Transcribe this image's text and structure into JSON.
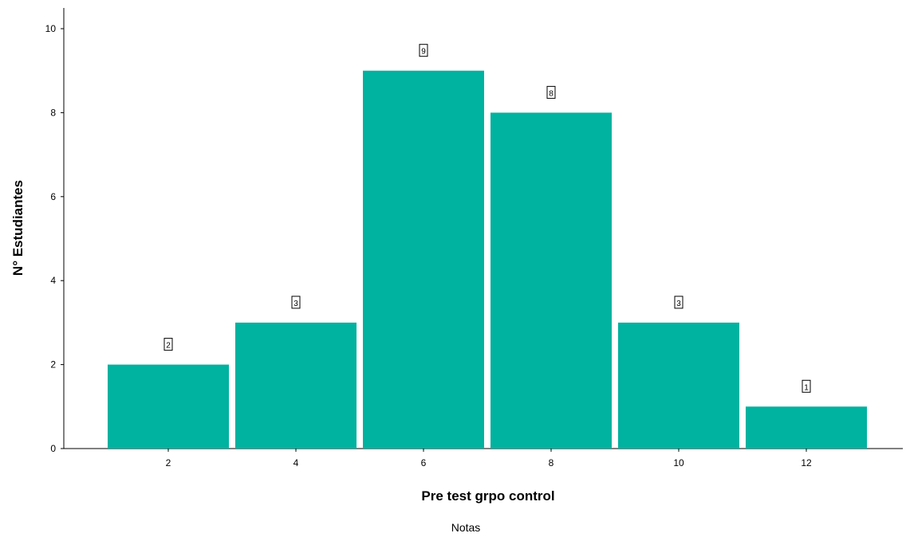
{
  "chart_data": {
    "type": "bar",
    "categories": [
      "2",
      "4",
      "6",
      "8",
      "10",
      "12"
    ],
    "values": [
      2,
      3,
      9,
      8,
      3,
      1
    ],
    "data_labels": [
      "2",
      "3",
      "9",
      "8",
      "3",
      "1"
    ],
    "xlabel": "Pre test grpo control",
    "ylabel": "N° Estudiantes",
    "caption": "Notas",
    "ylim": [
      0,
      10
    ],
    "yticks": [
      "0",
      "2",
      "4",
      "6",
      "8",
      "10"
    ],
    "grid": false,
    "legend": "none",
    "bar_color": "#00B2A0"
  }
}
